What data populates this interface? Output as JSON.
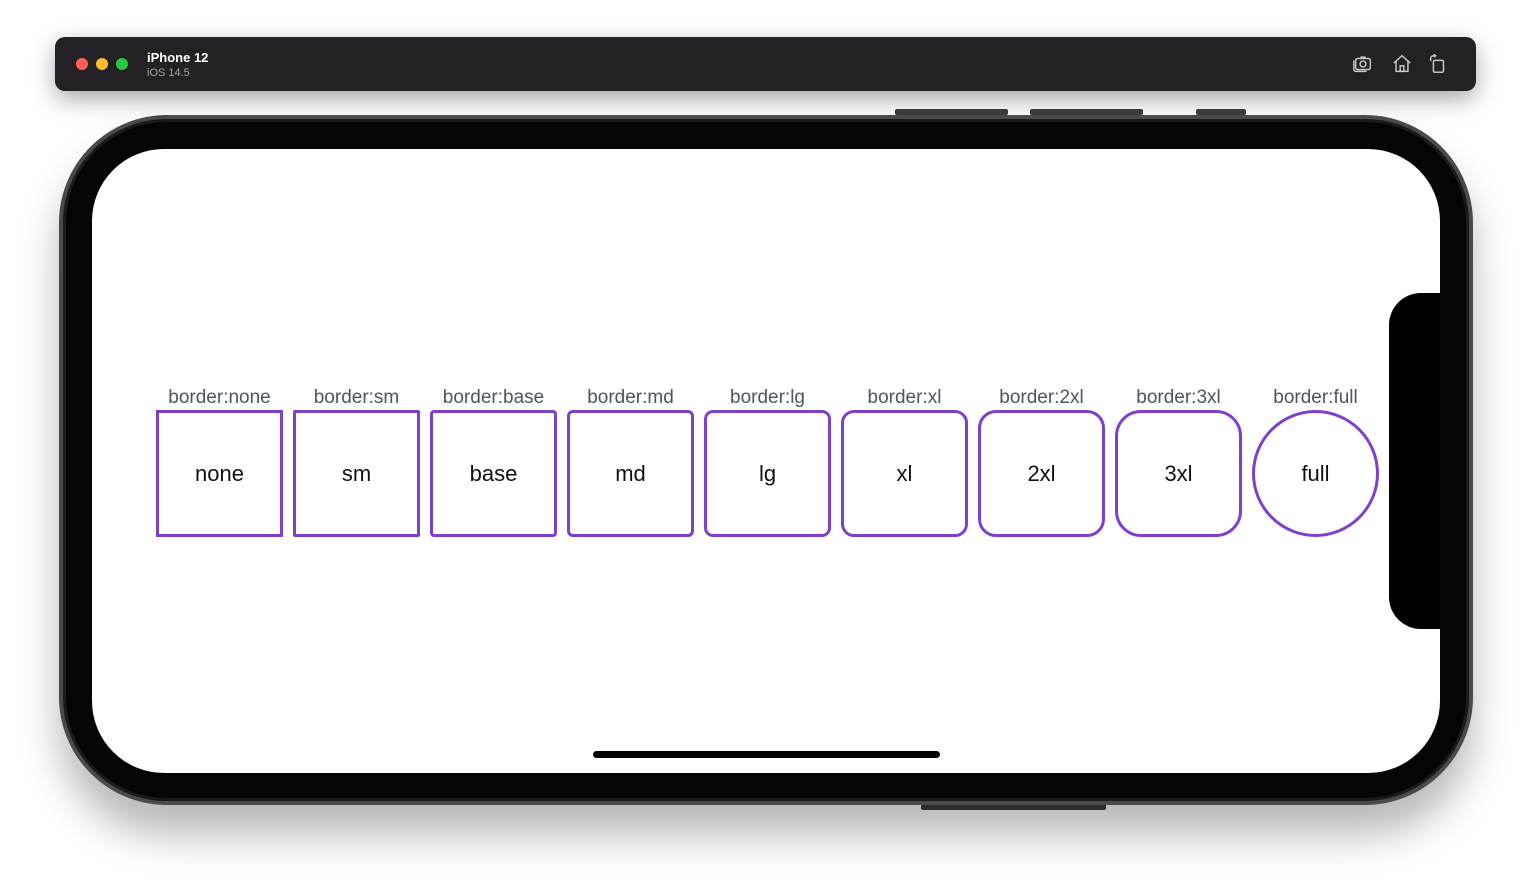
{
  "window": {
    "device_name": "iPhone 12",
    "os_version": "iOS 14.5",
    "buttons": {
      "screenshot_icon": "camera-icon",
      "home_icon": "home-icon",
      "rotate_icon": "rotate-icon"
    }
  },
  "theme": {
    "accent": "#7e3fcc",
    "label_color": "#4b5563"
  },
  "items": [
    {
      "label": "border:none",
      "text": "none"
    },
    {
      "label": "border:sm",
      "text": "sm"
    },
    {
      "label": "border:base",
      "text": "base"
    },
    {
      "label": "border:md",
      "text": "md"
    },
    {
      "label": "border:lg",
      "text": "lg"
    },
    {
      "label": "border:xl",
      "text": "xl"
    },
    {
      "label": "border:2xl",
      "text": "2xl"
    },
    {
      "label": "border:3xl",
      "text": "3xl"
    },
    {
      "label": "border:full",
      "text": "full"
    }
  ]
}
